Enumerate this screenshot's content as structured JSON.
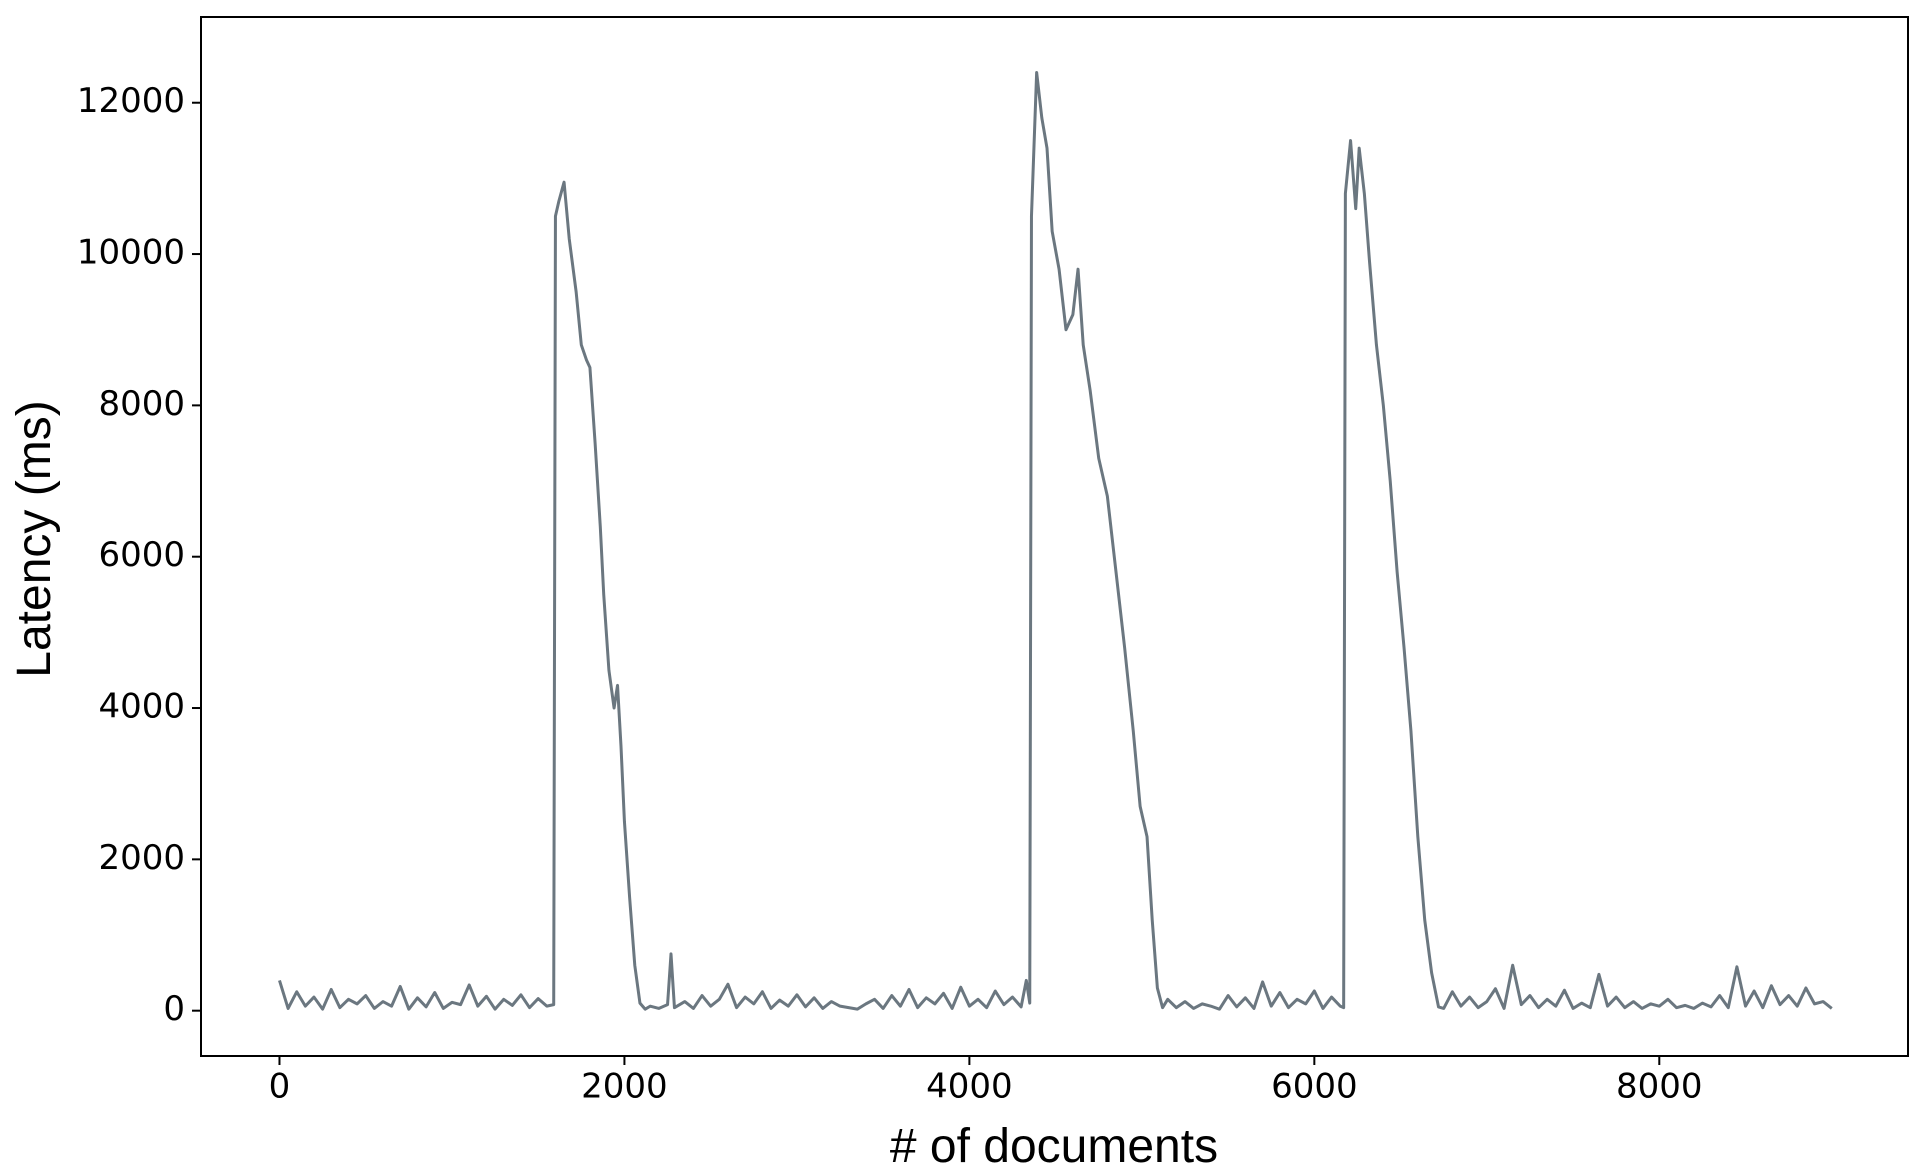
{
  "chart_data": {
    "type": "line",
    "xlabel": "# of documents",
    "ylabel": "Latency (ms)",
    "xlim": [
      -455,
      9442
    ],
    "ylim": [
      -599,
      13133
    ],
    "xticks": [
      0,
      2000,
      4000,
      6000,
      8000
    ],
    "yticks": [
      0,
      2000,
      4000,
      6000,
      8000,
      10000,
      12000
    ],
    "grid": false,
    "x": [
      0,
      50,
      100,
      150,
      200,
      250,
      300,
      350,
      400,
      450,
      500,
      550,
      600,
      650,
      700,
      750,
      800,
      850,
      900,
      950,
      1000,
      1050,
      1100,
      1150,
      1200,
      1250,
      1300,
      1350,
      1400,
      1450,
      1500,
      1550,
      1590,
      1600,
      1620,
      1650,
      1680,
      1720,
      1750,
      1780,
      1800,
      1830,
      1860,
      1880,
      1910,
      1940,
      1960,
      1980,
      2000,
      2030,
      2060,
      2090,
      2120,
      2150,
      2200,
      2250,
      2270,
      2290,
      2350,
      2400,
      2450,
      2500,
      2550,
      2600,
      2650,
      2700,
      2750,
      2800,
      2850,
      2900,
      2950,
      3000,
      3050,
      3100,
      3150,
      3200,
      3250,
      3300,
      3350,
      3400,
      3450,
      3500,
      3550,
      3600,
      3650,
      3700,
      3750,
      3800,
      3850,
      3900,
      3950,
      4000,
      4050,
      4100,
      4150,
      4200,
      4250,
      4300,
      4330,
      4350,
      4360,
      4390,
      4420,
      4450,
      4480,
      4520,
      4560,
      4600,
      4630,
      4660,
      4700,
      4750,
      4800,
      4850,
      4900,
      4950,
      4990,
      5030,
      5060,
      5090,
      5120,
      5150,
      5200,
      5250,
      5300,
      5350,
      5400,
      5450,
      5500,
      5550,
      5600,
      5650,
      5700,
      5750,
      5800,
      5850,
      5900,
      5950,
      6000,
      6050,
      6100,
      6150,
      6170,
      6180,
      6210,
      6240,
      6260,
      6290,
      6320,
      6360,
      6400,
      6440,
      6480,
      6520,
      6560,
      6600,
      6640,
      6680,
      6720,
      6750,
      6800,
      6850,
      6900,
      6950,
      7000,
      7050,
      7100,
      7150,
      7200,
      7250,
      7300,
      7350,
      7400,
      7450,
      7500,
      7550,
      7600,
      7650,
      7700,
      7750,
      7800,
      7850,
      7900,
      7950,
      8000,
      8050,
      8100,
      8150,
      8200,
      8250,
      8300,
      8350,
      8400,
      8450,
      8500,
      8550,
      8600,
      8650,
      8700,
      8750,
      8800,
      8850,
      8900,
      8950,
      9000
    ],
    "series": [
      {
        "color": "#6b7780",
        "values": [
          400,
          30,
          250,
          60,
          180,
          20,
          280,
          40,
          150,
          90,
          200,
          30,
          120,
          60,
          320,
          20,
          170,
          50,
          240,
          30,
          110,
          80,
          340,
          60,
          190,
          20,
          150,
          70,
          210,
          40,
          160,
          60,
          80,
          10500,
          10700,
          10950,
          10200,
          9500,
          8800,
          8600,
          8500,
          7500,
          6400,
          5500,
          4500,
          4000,
          4300,
          3500,
          2500,
          1500,
          600,
          100,
          20,
          60,
          30,
          80,
          750,
          40,
          120,
          30,
          200,
          60,
          150,
          350,
          40,
          180,
          90,
          250,
          30,
          140,
          60,
          210,
          50,
          170,
          30,
          120,
          60,
          40,
          20,
          90,
          150,
          30,
          200,
          60,
          280,
          40,
          170,
          90,
          230,
          30,
          310,
          60,
          150,
          40,
          260,
          80,
          180,
          50,
          400,
          100,
          10500,
          12400,
          11800,
          11400,
          10300,
          9800,
          9000,
          9200,
          9800,
          8800,
          8200,
          7300,
          6800,
          5800,
          4800,
          3700,
          2700,
          2300,
          1200,
          300,
          40,
          150,
          40,
          120,
          30,
          90,
          60,
          20,
          200,
          50,
          170,
          30,
          380,
          60,
          240,
          40,
          150,
          90,
          260,
          30,
          180,
          60,
          40,
          10800,
          11500,
          10600,
          11400,
          10800,
          9900,
          8800,
          8000,
          7000,
          5800,
          4800,
          3700,
          2300,
          1200,
          500,
          50,
          30,
          250,
          60,
          180,
          40,
          120,
          290,
          30,
          600,
          80,
          200,
          40,
          150,
          60,
          270,
          30,
          100,
          40,
          480,
          60,
          180,
          40,
          120,
          30,
          90,
          60,
          150,
          40,
          70,
          30,
          100,
          50,
          200,
          40,
          580,
          60,
          260,
          40,
          330,
          80,
          200,
          60,
          300,
          90,
          120,
          30
        ]
      }
    ]
  }
}
